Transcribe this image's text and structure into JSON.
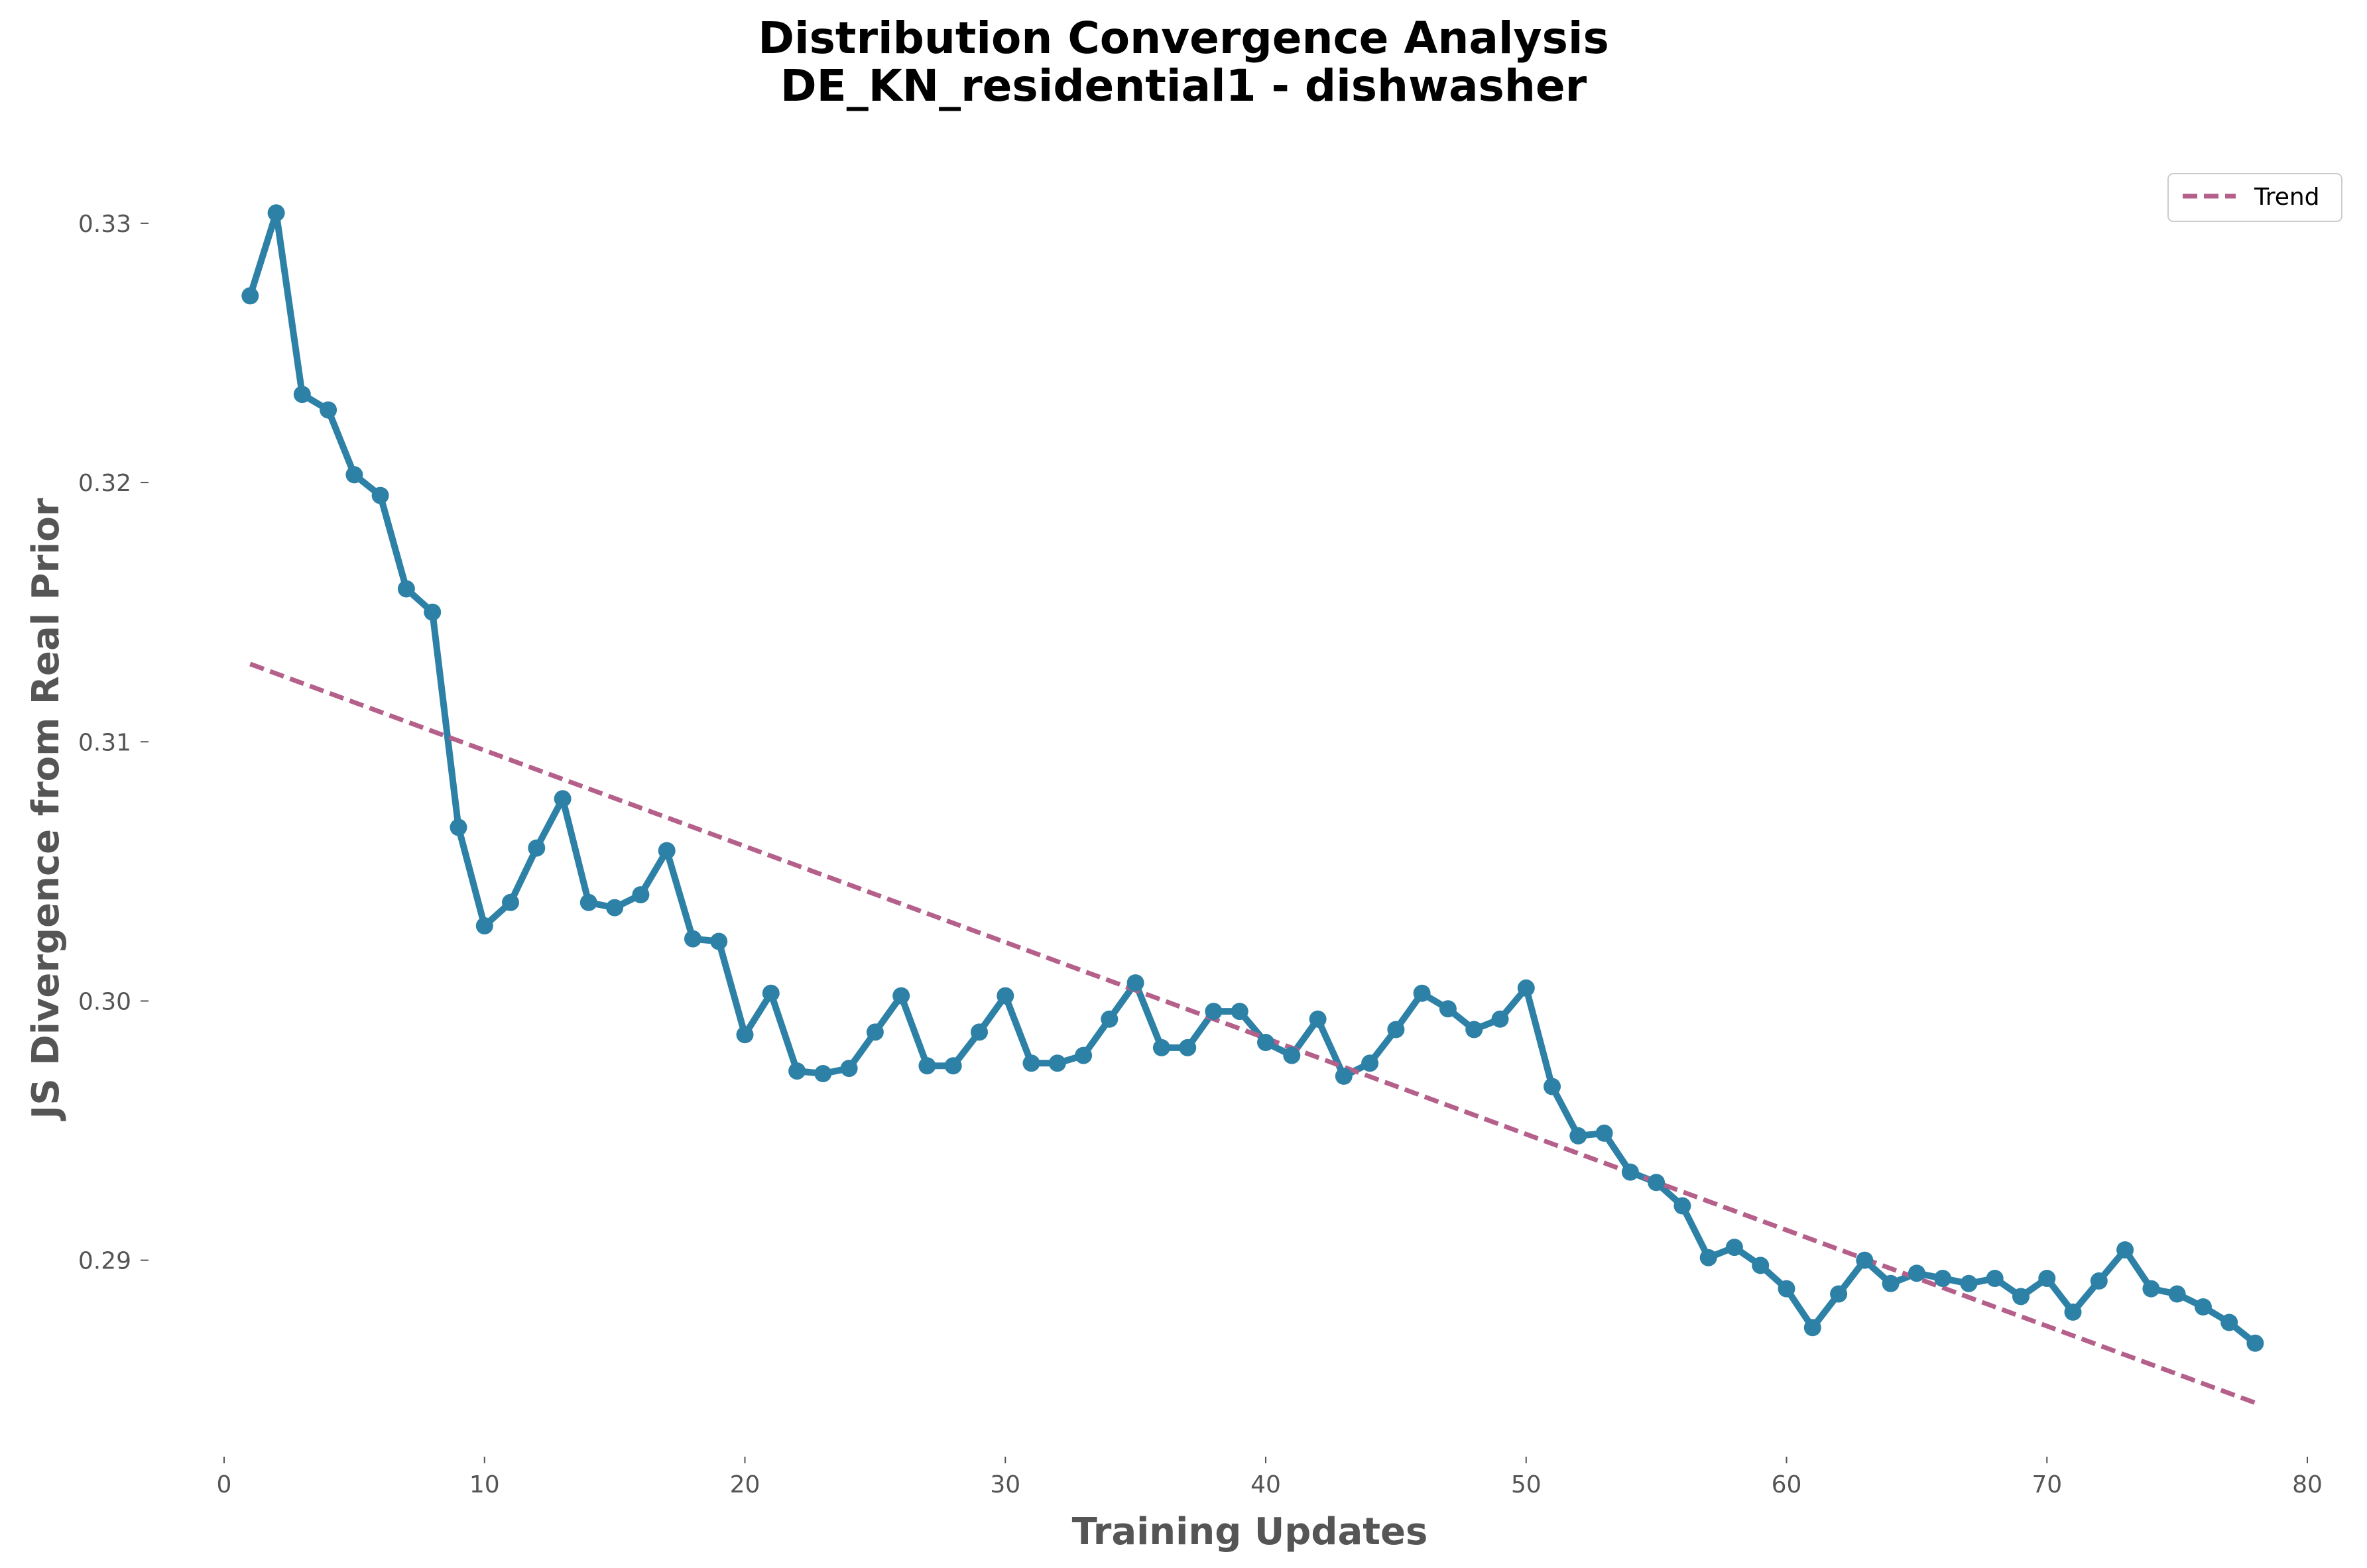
{
  "chart_data": {
    "type": "line",
    "title": "Distribution Convergence Analysis",
    "subtitle": "DE_KN_residential1 - dishwasher",
    "xlabel": "Training Updates",
    "ylabel": "JS Divergence from Real Prior",
    "xlim": [
      0,
      80
    ],
    "ylim": [
      0.2825,
      0.3335
    ],
    "xticks": [
      "0",
      "10",
      "20",
      "30",
      "40",
      "50",
      "60",
      "70",
      "80"
    ],
    "yticks": [
      "0.29",
      "0.30",
      "0.31",
      "0.32",
      "0.33"
    ],
    "grid": false,
    "legend_position": "top-right",
    "legend": [
      {
        "label": "Trend",
        "style": "dashed",
        "color": "#b5608a"
      }
    ],
    "series": [
      {
        "color": "#2e81a6",
        "x": [
          1,
          2,
          3,
          4,
          5,
          6,
          7,
          8,
          9,
          10,
          11,
          12,
          13,
          14,
          15,
          16,
          17,
          18,
          19,
          20,
          21,
          22,
          23,
          24,
          25,
          26,
          27,
          28,
          29,
          30,
          31,
          32,
          33,
          34,
          35,
          36,
          37,
          38,
          39,
          40,
          41,
          42,
          43,
          44,
          45,
          46,
          47,
          48,
          49,
          50,
          51,
          52,
          53,
          54,
          55,
          56,
          57,
          58,
          59,
          60,
          61,
          62,
          63,
          64,
          65,
          66,
          67,
          68,
          69,
          70,
          71,
          72,
          73,
          74,
          75,
          76,
          77,
          78
        ],
        "y": [
          0.3272,
          0.3304,
          0.3234,
          0.3228,
          0.3203,
          0.3195,
          0.3159,
          0.315,
          0.3067,
          0.3029,
          0.3038,
          0.3059,
          0.3078,
          0.3038,
          0.3036,
          0.3041,
          0.3058,
          0.3024,
          0.3023,
          0.2987,
          0.3003,
          0.2973,
          0.2972,
          0.2974,
          0.2988,
          0.3002,
          0.2975,
          0.2975,
          0.2988,
          0.3002,
          0.2976,
          0.2976,
          0.2979,
          0.2993,
          0.3007,
          0.2982,
          0.2982,
          0.2996,
          0.2996,
          0.2984,
          0.2979,
          0.2993,
          0.2971,
          0.2976,
          0.2989,
          0.3003,
          0.2997,
          0.2989,
          0.2993,
          0.3005,
          0.2967,
          0.2948,
          0.2949,
          0.2934,
          0.293,
          0.2921,
          0.2901,
          0.2905,
          0.2898,
          0.2889,
          0.2874,
          0.2887,
          0.29,
          0.2891,
          0.2895,
          0.2893,
          0.2891,
          0.2893,
          0.2886,
          0.2893,
          0.288,
          0.2892,
          0.2904,
          0.2889,
          0.2887,
          0.2882,
          0.2876,
          0.2868
        ]
      },
      {
        "name": "Trend",
        "color": "#b5608a",
        "style": "dashed",
        "x": [
          1,
          78
        ],
        "y": [
          0.313,
          0.2845
        ]
      }
    ]
  }
}
